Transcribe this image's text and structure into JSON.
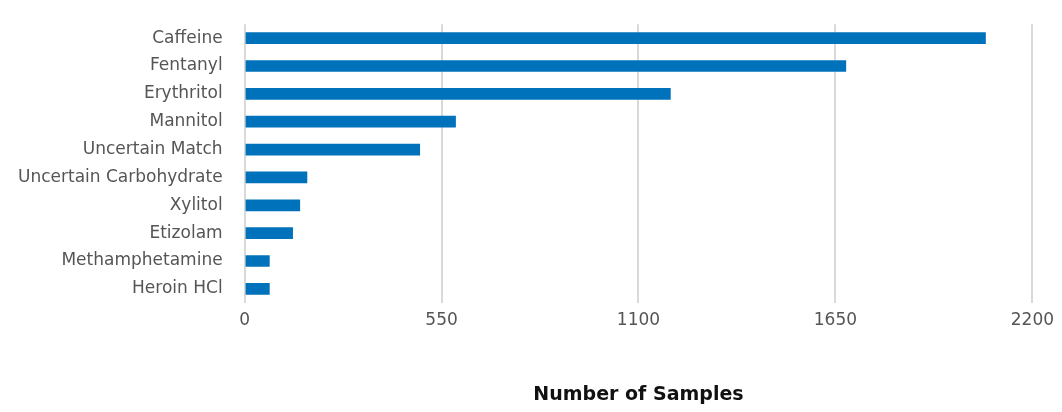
{
  "chart_data": {
    "type": "bar",
    "orientation": "horizontal",
    "xlabel": "Number of Samples",
    "categories": [
      "Caffeine",
      "Fentanyl",
      "Erythritol",
      "Mannitol",
      "Uncertain Match",
      "Uncertain Carbohydrate",
      "Xylitol",
      "Etizolam",
      "Methamphetamine",
      "Heroin HCl"
    ],
    "values": [
      2070,
      1680,
      1190,
      590,
      490,
      175,
      155,
      135,
      70,
      70
    ],
    "color": "#0072bc",
    "xlim": [
      0,
      2200
    ],
    "xticks": [
      0,
      550,
      1100,
      1650,
      2200
    ],
    "grid": "x",
    "legend": false
  }
}
